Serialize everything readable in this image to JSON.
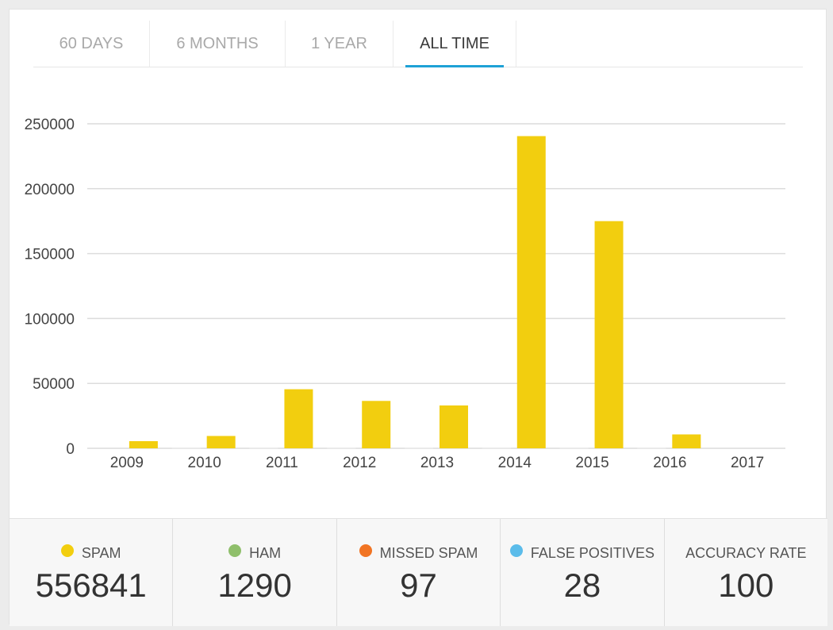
{
  "tabs": [
    {
      "label": "60 DAYS",
      "active": false
    },
    {
      "label": "6 MONTHS",
      "active": false
    },
    {
      "label": "1 YEAR",
      "active": false
    },
    {
      "label": "ALL TIME",
      "active": true
    }
  ],
  "chart_data": {
    "type": "bar",
    "categories": [
      "2009",
      "2010",
      "2011",
      "2012",
      "2013",
      "2014",
      "2015",
      "2016",
      "2017"
    ],
    "series": [
      {
        "color": "#f2ce0f",
        "values": [
          5500,
          9500,
          45500,
          36500,
          33000,
          240500,
          175000,
          10700,
          0
        ]
      },
      {
        "color": "#e9e9e9",
        "values": [
          0,
          300,
          300,
          300,
          300,
          300,
          300,
          300,
          0
        ]
      }
    ],
    "yticks": [
      0,
      50000,
      100000,
      150000,
      200000,
      250000
    ],
    "ylim": [
      0,
      250000
    ],
    "grid": true,
    "legend": "none"
  },
  "stats": [
    {
      "label": "SPAM",
      "value": "556841",
      "color": "#f2ce0f"
    },
    {
      "label": "HAM",
      "value": "1290",
      "color": "#8fbf6b"
    },
    {
      "label": "MISSED SPAM",
      "value": "97",
      "color": "#f17423"
    },
    {
      "label": "FALSE POSITIVES",
      "value": "28",
      "color": "#5bbcea"
    },
    {
      "label": "ACCURACY RATE",
      "value": "100",
      "color": ""
    }
  ]
}
